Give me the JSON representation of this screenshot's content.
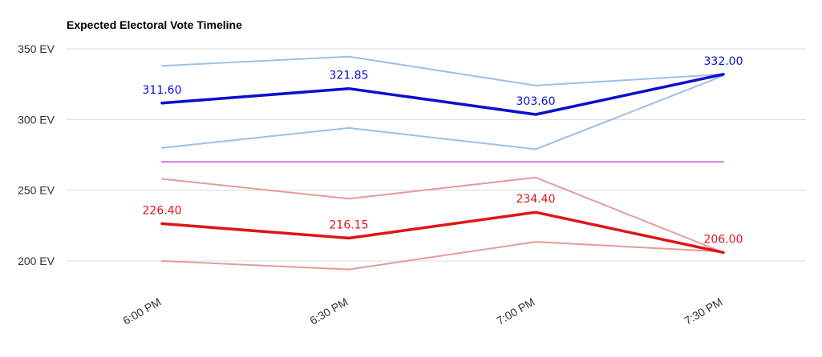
{
  "chart_data": {
    "type": "line",
    "title": "Expected Electoral Vote Timeline",
    "categories": [
      "6:00 PM",
      "6:30 PM",
      "7:00 PM",
      "7:30 PM"
    ],
    "yticks": [
      "350 EV",
      "300 EV",
      "250 EV",
      "200 EV"
    ],
    "ytick_values": [
      350,
      300,
      250,
      200
    ],
    "ylim": [
      180,
      360
    ],
    "grid": true,
    "legend": "none",
    "series": [
      {
        "key": "blue_upper",
        "values": [
          338,
          344.5,
          324,
          332
        ],
        "color": "#9fbfe6",
        "width": 2,
        "labels": false
      },
      {
        "key": "blue_lower",
        "values": [
          280,
          294,
          279,
          331
        ],
        "color": "#9fbfe6",
        "width": 2,
        "labels": false
      },
      {
        "key": "blue_mean",
        "values": [
          311.6,
          321.85,
          303.6,
          332.0
        ],
        "color": "#0a0fd0",
        "width": 3.5,
        "labels": true,
        "value_labels": [
          "311.60",
          "321.85",
          "303.60",
          "332.00"
        ]
      },
      {
        "key": "threshold",
        "values": [
          270,
          270,
          270,
          270
        ],
        "color": "#c44ad9",
        "width": 1.5,
        "labels": false
      },
      {
        "key": "red_upper",
        "values": [
          258,
          244,
          259,
          206
        ],
        "color": "#e89a9a",
        "width": 2,
        "labels": false
      },
      {
        "key": "red_lower",
        "values": [
          200,
          194,
          213.5,
          206.5
        ],
        "color": "#e89a9a",
        "width": 2,
        "labels": false
      },
      {
        "key": "red_mean",
        "values": [
          226.4,
          216.15,
          234.4,
          206.0
        ],
        "color": "#e01515",
        "width": 3.5,
        "labels": true,
        "value_labels": [
          "226.40",
          "216.15",
          "234.40",
          "206.00"
        ]
      }
    ]
  }
}
